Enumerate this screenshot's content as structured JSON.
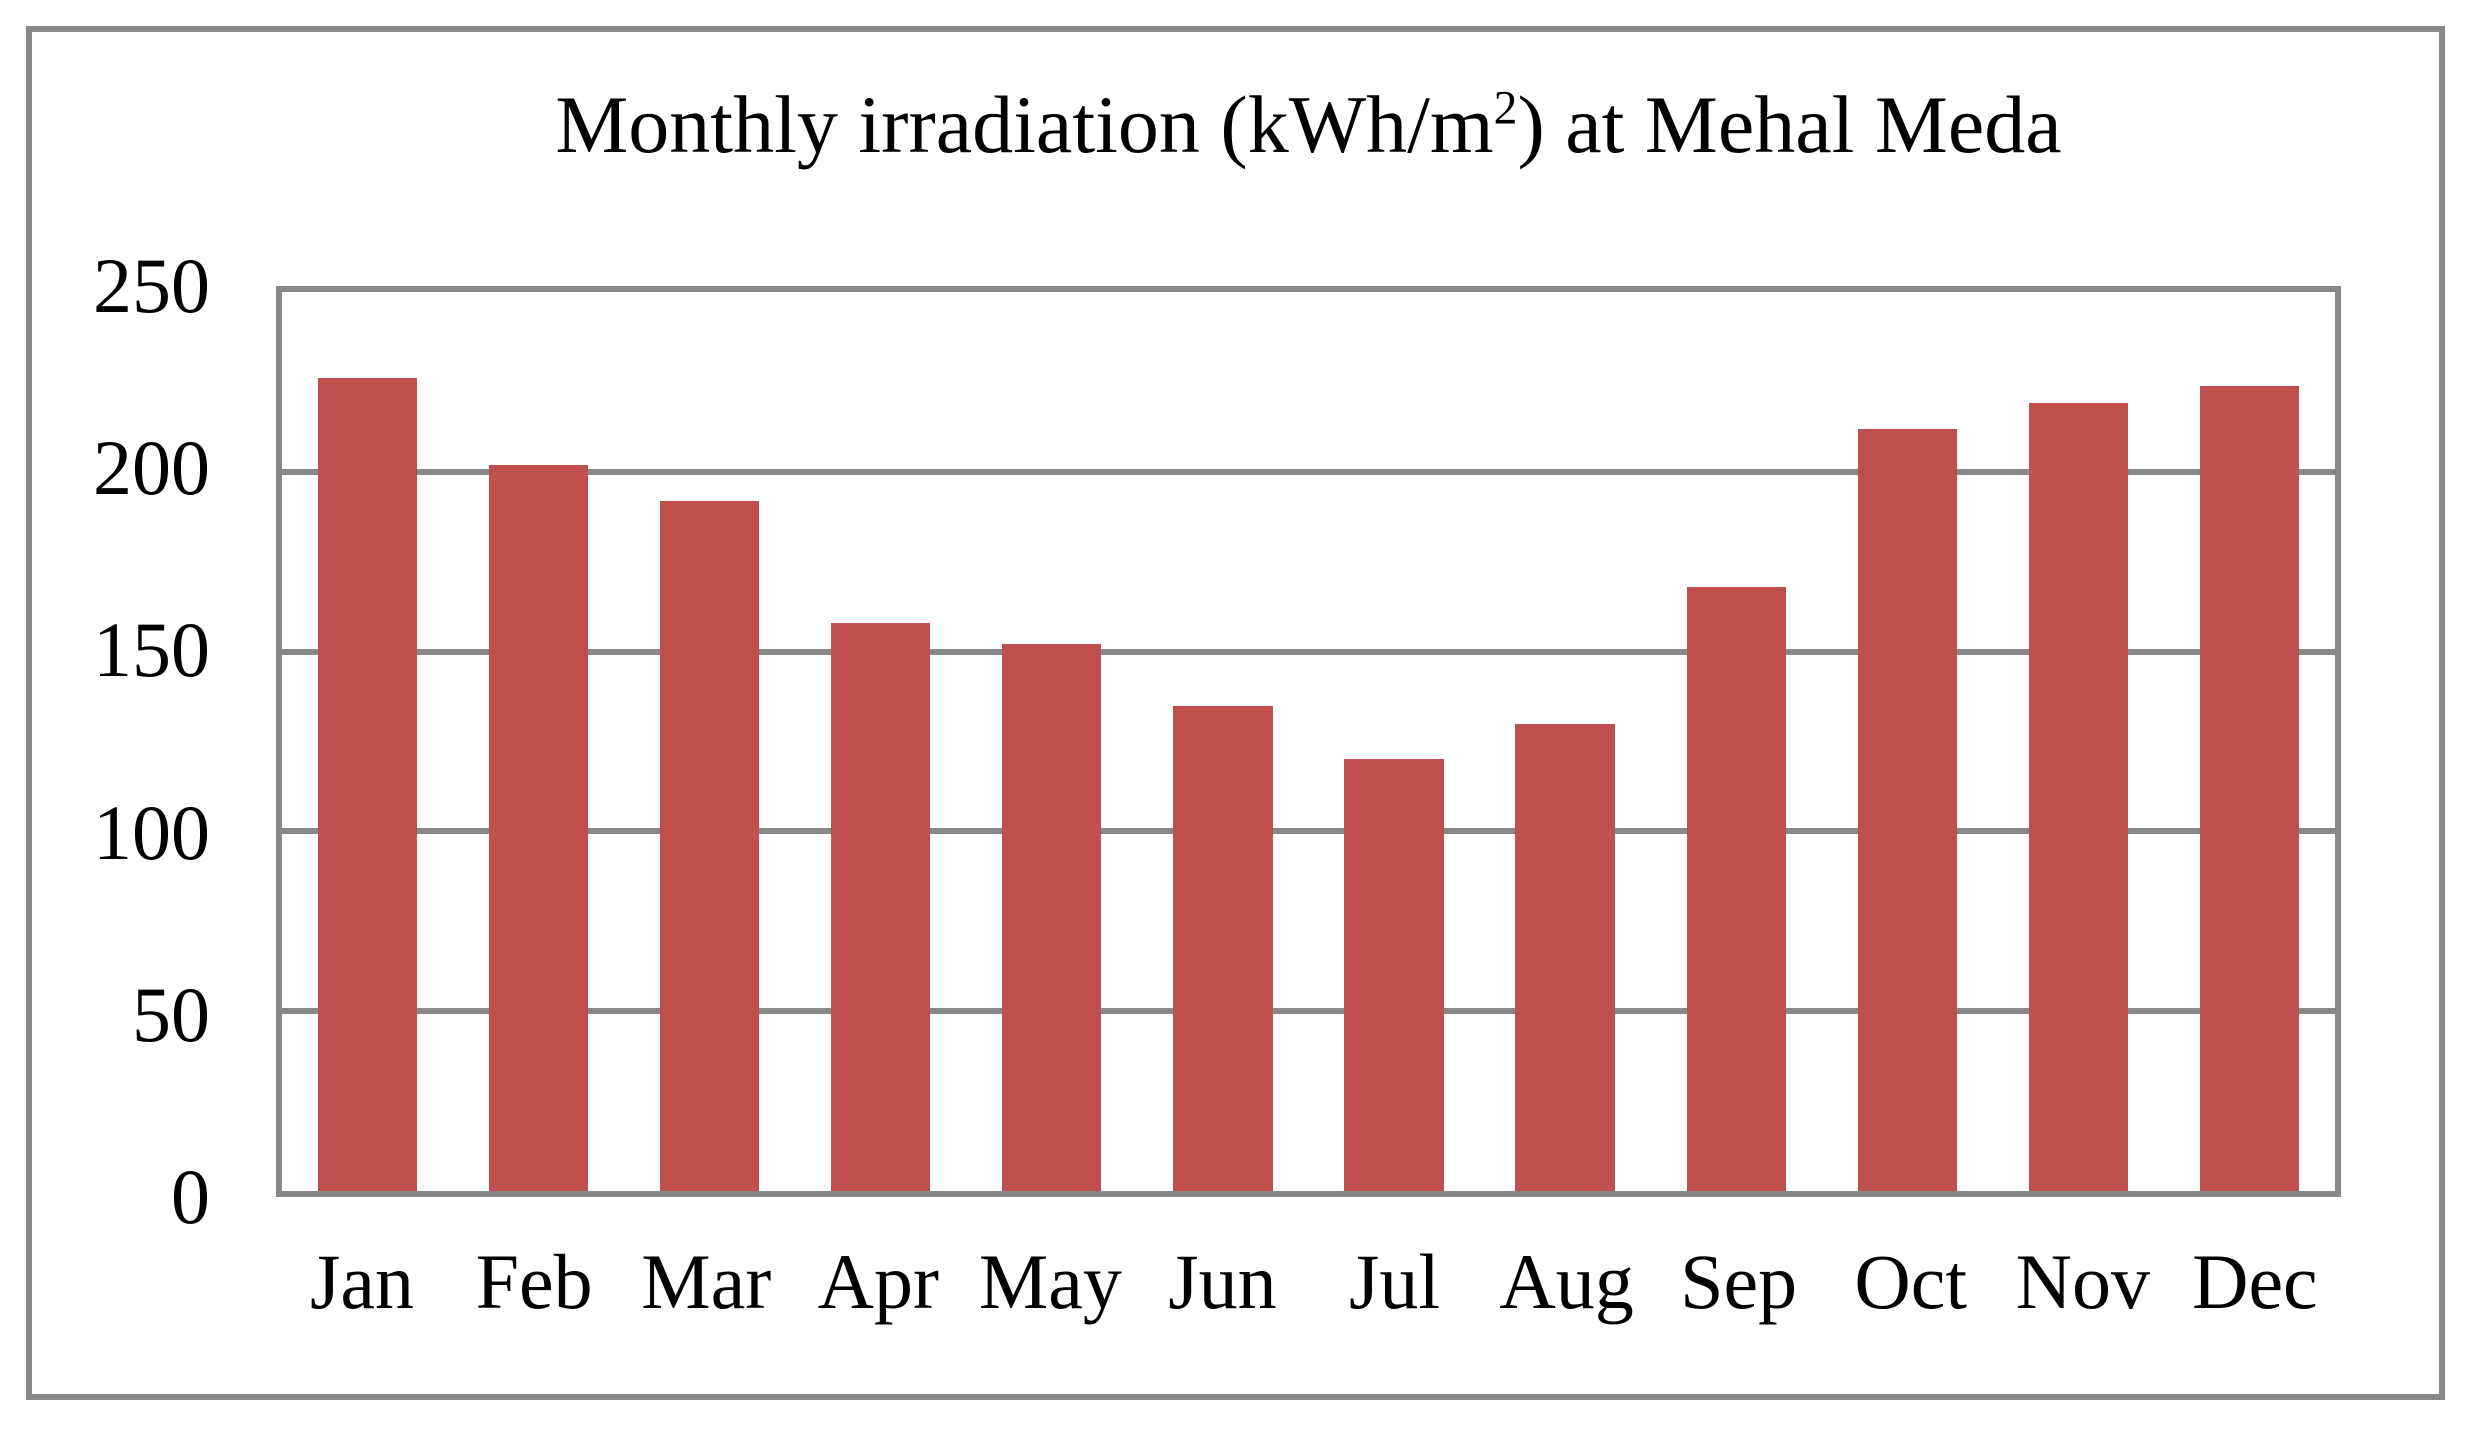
{
  "chart_data": {
    "type": "bar",
    "title": "Monthly irradiation (kWh/m2) at Mehal Meda",
    "title_prefix": "Monthly irradiation (kWh/m",
    "title_sup": "2",
    "title_suffix": ") at Mehal Meda",
    "categories": [
      "Jan",
      "Feb",
      "Mar",
      "Apr",
      "May",
      "Jun",
      "Jul",
      "Aug",
      "Sep",
      "Oct",
      "Nov",
      "Dec"
    ],
    "values": [
      226,
      202,
      192,
      158,
      152,
      135,
      120,
      130,
      168,
      212,
      219,
      224
    ],
    "y_ticks": [
      250,
      200,
      150,
      100,
      50,
      0
    ],
    "ylim": [
      0,
      250
    ],
    "xlabel": "",
    "ylabel": "",
    "grid": true,
    "legend_position": "none",
    "bar_color": "#C0504D",
    "grid_color": "#888888",
    "frame_color": "#888888",
    "text_color": "#000000",
    "background_color": "#FFFFFF"
  }
}
